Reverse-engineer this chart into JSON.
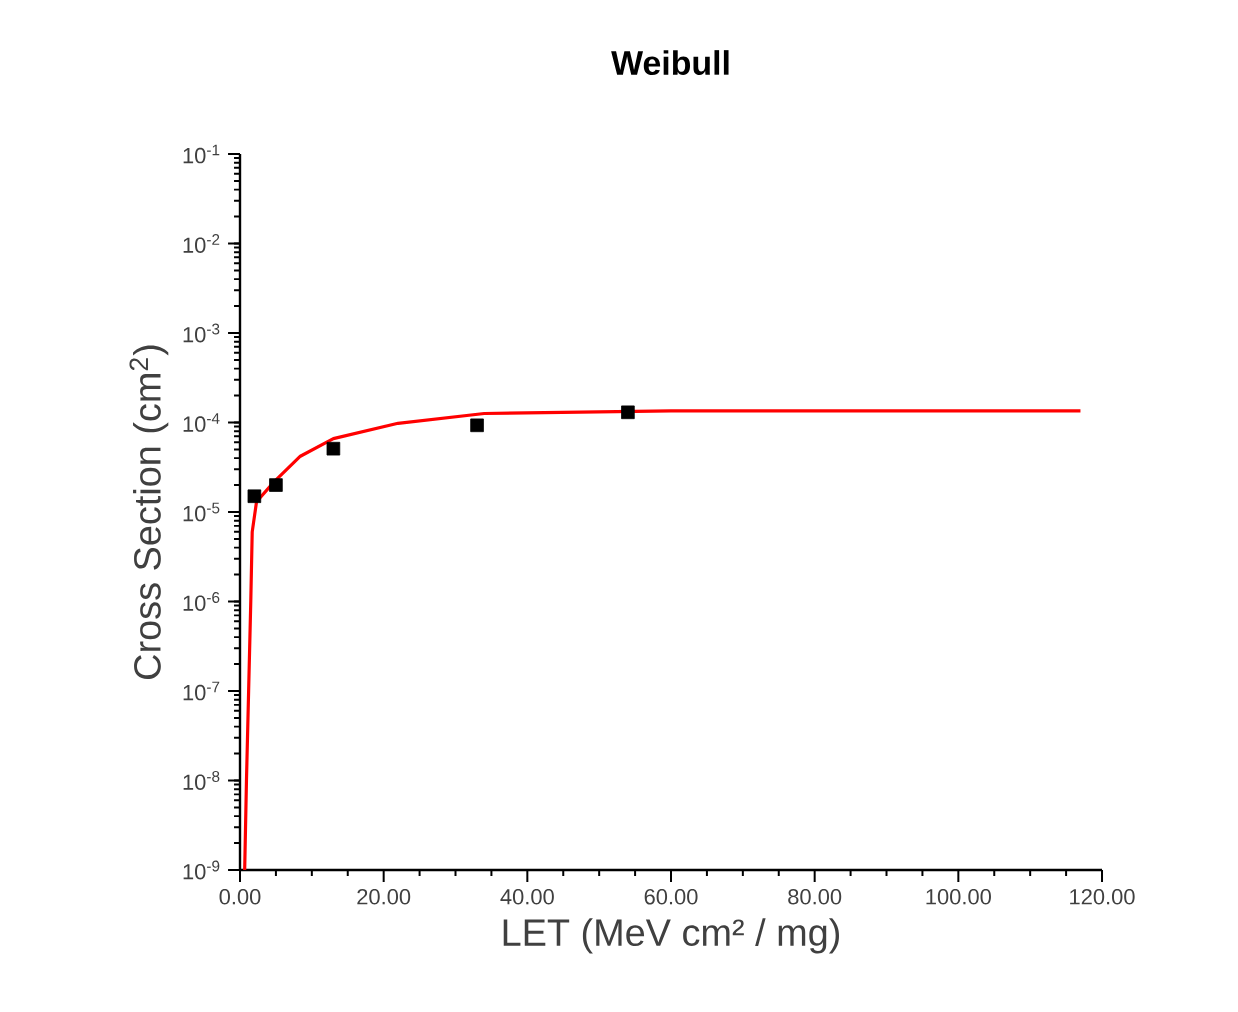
{
  "chart_data": {
    "type": "scatter",
    "title": "**Weibull**",
    "xlabel": "LET (MeV cm² / mg)",
    "ylabel": "Cross Section (cm$^{2}$)",
    "log": "y",
    "grid": false,
    "xlim": [
      0,
      120
    ],
    "ylim": [
      1e-09,
      0.1
    ],
    "xticks": [
      {
        "value": 0,
        "label": "0.00"
      },
      {
        "value": 20,
        "label": "20.00"
      },
      {
        "value": 40,
        "label": "40.00"
      },
      {
        "value": 60,
        "label": "60.00"
      },
      {
        "value": 80,
        "label": "80.00"
      },
      {
        "value": 100,
        "label": "100.00"
      },
      {
        "value": 120,
        "label": "120.00"
      }
    ],
    "yticks": [
      {
        "value": 1e-09,
        "label": "10$^{-9}$"
      },
      {
        "value": 1e-08,
        "label": "10$^{-8}$"
      },
      {
        "value": 1e-07,
        "label": "10$^{-7}$"
      },
      {
        "value": 1e-06,
        "label": "10$^{-6}$"
      },
      {
        "value": 1e-05,
        "label": "10$^{-5}$"
      },
      {
        "value": 0.0001,
        "label": "10$^{-4}$"
      },
      {
        "value": 0.001,
        "label": "10$^{-3}$"
      },
      {
        "value": 0.01,
        "label": "10$^{-2}$"
      },
      {
        "value": 0.1,
        "label": "10$^{-1}$"
      }
    ],
    "series": [
      {
        "color": "#000000",
        "marker": "square",
        "x": [
          2,
          5,
          13,
          33,
          54
        ],
        "values": [
          1.5e-05,
          2e-05,
          5.1e-05,
          9.3e-05,
          0.00013
        ]
      },
      {
        "type": "line",
        "color": "#ff0000",
        "marker": "none",
        "line_style": "solid",
        "x": [
          0.65,
          0.9,
          1.2,
          1.5,
          1.7,
          2.3,
          4.8,
          8.4,
          13,
          22,
          34,
          60,
          117
        ],
        "values": [
          1e-09,
          1e-08,
          1e-07,
          1e-06,
          6e-06,
          1.3e-05,
          2.2e-05,
          4.2e-05,
          6.6e-05,
          9.8e-05,
          0.000126,
          0.000135,
          0.000135
        ]
      }
    ]
  }
}
